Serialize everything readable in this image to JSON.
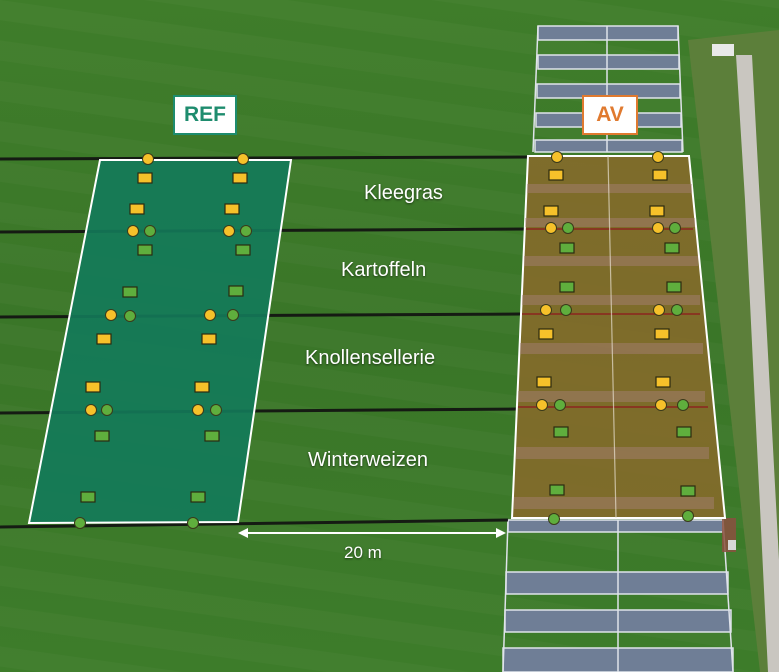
{
  "plots": {
    "reference": {
      "label": "REF",
      "color": "#1e8c6e"
    },
    "agrivoltaic": {
      "label": "AV",
      "color": "#e07a2f"
    }
  },
  "crops": [
    "Kleegras",
    "Kartoffeln",
    "Knollensellerie",
    "Winterweizen"
  ],
  "scale": {
    "label": "20 m"
  },
  "marker_colors": {
    "yellow": "#f6c12a",
    "green": "#5fae3d"
  }
}
